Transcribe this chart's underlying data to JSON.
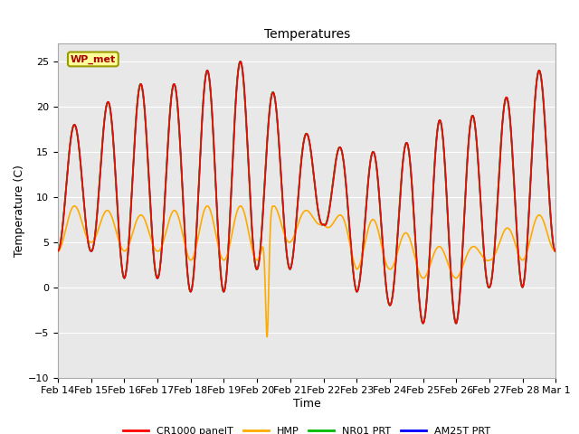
{
  "title": "Temperatures",
  "xlabel": "Time",
  "ylabel": "Temperature (C)",
  "ylim": [
    -10,
    27
  ],
  "x_ticks": [
    "Feb 14",
    "Feb 15",
    "Feb 16",
    "Feb 17",
    "Feb 18",
    "Feb 19",
    "Feb 20",
    "Feb 21",
    "Feb 22",
    "Feb 23",
    "Feb 24",
    "Feb 25",
    "Feb 26",
    "Feb 27",
    "Feb 28",
    "Mar 1"
  ],
  "legend_labels": [
    "CR1000 panelT",
    "HMP",
    "NR01 PRT",
    "AM25T PRT"
  ],
  "legend_colors": [
    "#ff0000",
    "#ffaa00",
    "#00bb00",
    "#0000ff"
  ],
  "line_colors": [
    "#ff0000",
    "#ffaa00",
    "#00bb00",
    "#0000ff"
  ],
  "axes_bg_color": "#e8e8e8",
  "grid_color": "#ffffff",
  "title_fontsize": 10,
  "label_fontsize": 9,
  "tick_fontsize": 8,
  "annotation": "WP_met",
  "day_peaks": [
    18,
    18,
    23,
    22,
    23,
    25,
    25,
    18,
    16,
    15,
    15,
    17,
    20,
    18,
    24,
    24
  ],
  "day_troughs": [
    4,
    4,
    1,
    1,
    -0.5,
    -0.5,
    2,
    2,
    7,
    -0.5,
    -2,
    -4,
    -4,
    0,
    0,
    4
  ],
  "hmp_spike_day": 6.3,
  "hmp_spike_val": -5.5
}
